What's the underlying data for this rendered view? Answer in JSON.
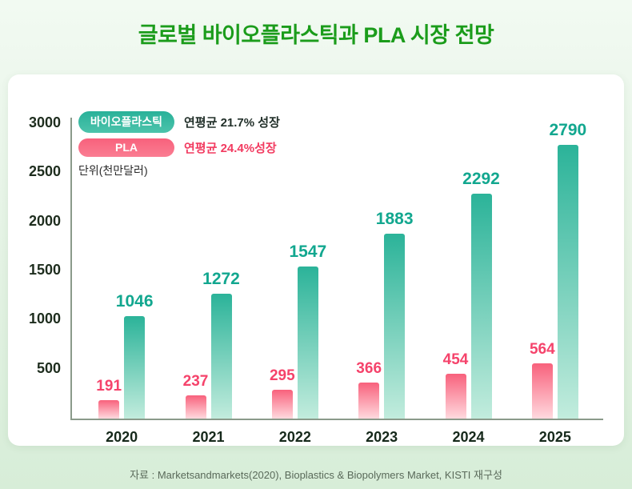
{
  "title": "글로벌 바이오플라스틱과 PLA 시장 전망",
  "legend": {
    "series1_label": "바이오플라스틱",
    "series1_growth": "연평균 21.7% 성장",
    "series2_label": "PLA",
    "series2_growth": "연평균 24.4%성장",
    "unit_label": "단위(천만달러)"
  },
  "footer": "자료 : Marketsandmarkets(2020), Bioplastics & Biopolymers Market, KISTI 재구성",
  "colors": {
    "title_green": "#1b9c1b",
    "axis": "#8a9a8a",
    "tick_text": "#1e2d1e",
    "bio_teal": "#29b199",
    "pla_pink": "#f8617c"
  },
  "chart_data": {
    "type": "bar",
    "title": "글로벌 바이오플라스틱과 PLA 시장 전망",
    "categories": [
      "2020",
      "2021",
      "2022",
      "2023",
      "2024",
      "2025"
    ],
    "series": [
      {
        "key": "pla",
        "name": "PLA",
        "growth": "연평균 24.4%성장",
        "values": [
          191,
          237,
          295,
          366,
          454,
          564
        ],
        "color_top": "#f8617c",
        "color_bottom": "#ffd9de",
        "label_color": "#f5436b"
      },
      {
        "key": "bio",
        "name": "바이오플라스틱",
        "growth": "연평균 21.7% 성장",
        "values": [
          1046,
          1272,
          1547,
          1883,
          2292,
          2790
        ],
        "color_top": "#2bb399",
        "color_bottom": "#c2ecdd",
        "label_color": "#12a78f"
      }
    ],
    "ylabel": "단위(천만달러)",
    "ylim": [
      0,
      3000
    ],
    "yticks": [
      500,
      1000,
      1500,
      2000,
      2500,
      3000
    ],
    "grid": false,
    "legend_position": "top-left"
  }
}
